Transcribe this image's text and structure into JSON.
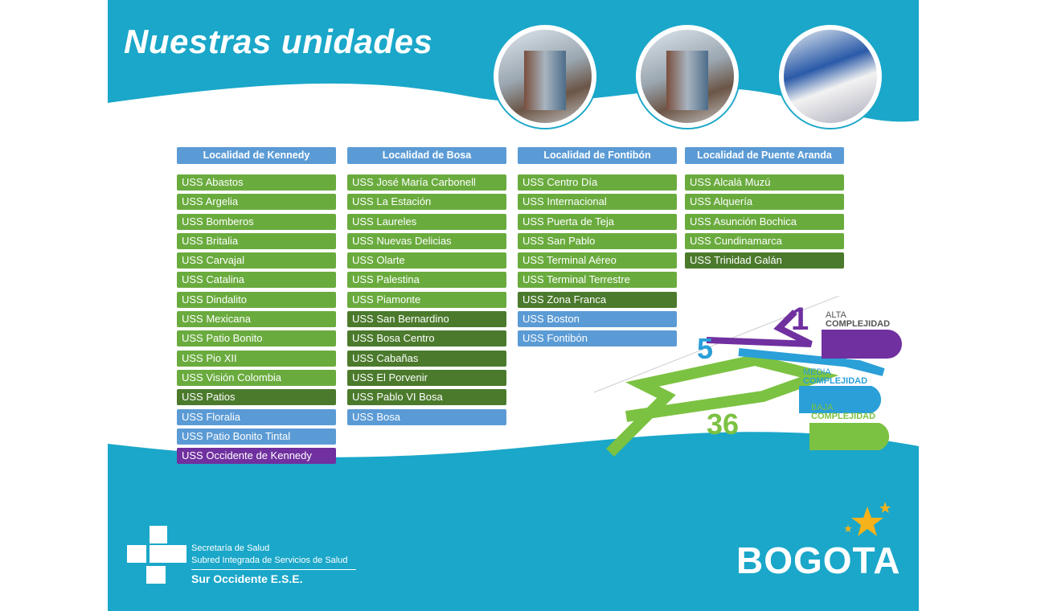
{
  "title": "Nuestras unidades",
  "columns": [
    {
      "header": "Localidad de Kennedy",
      "items": [
        {
          "label": "USS Abastos",
          "tone": "green"
        },
        {
          "label": "USS Argelia",
          "tone": "green"
        },
        {
          "label": "USS Bomberos",
          "tone": "green"
        },
        {
          "label": "USS Britalia",
          "tone": "green"
        },
        {
          "label": "USS Carvajal",
          "tone": "green"
        },
        {
          "label": "USS Catalina",
          "tone": "green"
        },
        {
          "label": "USS Dindalito",
          "tone": "green"
        },
        {
          "label": "USS Mexicana",
          "tone": "green"
        },
        {
          "label": "USS Patio Bonito",
          "tone": "green"
        },
        {
          "label": "USS Pio XII",
          "tone": "green"
        },
        {
          "label": "USS Visión Colombia",
          "tone": "green"
        },
        {
          "label": "USS  Patios",
          "tone": "dark-green"
        },
        {
          "label": "USS  Floralia",
          "tone": "blue"
        },
        {
          "label": "USS Patio Bonito Tintal",
          "tone": "blue"
        },
        {
          "label": "USS Occidente de Kennedy",
          "tone": "purple"
        }
      ]
    },
    {
      "header": "Localidad de Bosa",
      "items": [
        {
          "label": "USS José María Carbonell",
          "tone": "green"
        },
        {
          "label": "USS La Estación",
          "tone": "green"
        },
        {
          "label": "USS Laureles",
          "tone": "green"
        },
        {
          "label": "USS Nuevas Delicias",
          "tone": "green"
        },
        {
          "label": "USS Olarte",
          "tone": "green"
        },
        {
          "label": "USS Palestina",
          "tone": "green"
        },
        {
          "label": "USS Piamonte",
          "tone": "green"
        },
        {
          "label": "USS San Bernardino",
          "tone": "dark-green"
        },
        {
          "label": "USS Bosa Centro",
          "tone": "dark-green"
        },
        {
          "label": "USS  Cabañas",
          "tone": "dark-green"
        },
        {
          "label": "USS  El Porvenir",
          "tone": "dark-green"
        },
        {
          "label": "USS Pablo VI Bosa",
          "tone": "dark-green"
        },
        {
          "label": "USS Bosa",
          "tone": "blue"
        }
      ]
    },
    {
      "header": "Localidad de Fontibón",
      "items": [
        {
          "label": "USS Centro Día",
          "tone": "green"
        },
        {
          "label": "USS Internacional",
          "tone": "green"
        },
        {
          "label": "USS Puerta de Teja",
          "tone": "green"
        },
        {
          "label": "USS San Pablo",
          "tone": "green"
        },
        {
          "label": "USS Terminal Aéreo",
          "tone": "green"
        },
        {
          "label": "USS Terminal Terrestre",
          "tone": "green"
        },
        {
          "label": "USS Zona Franca",
          "tone": "dark-green"
        },
        {
          "label": "USS Boston",
          "tone": "blue"
        },
        {
          "label": "USS Fontibón",
          "tone": "blue"
        }
      ]
    },
    {
      "header": "Localidad de Puente Aranda",
      "items": [
        {
          "label": "USS Alcalá Muzú",
          "tone": "green"
        },
        {
          "label": "USS Alquería",
          "tone": "green"
        },
        {
          "label": "USS Asunción Bochica",
          "tone": "green"
        },
        {
          "label": "USS Cundinamarca",
          "tone": "green"
        },
        {
          "label": "USS Trinidad Galán",
          "tone": "dark-green"
        }
      ]
    }
  ],
  "complexity": [
    {
      "count": "1",
      "line1": "ALTA",
      "line2": "COMPLEJIDAD",
      "color": "#7030a0"
    },
    {
      "count": "5",
      "line1": "MEDIA",
      "line2": "COMPLEJIDAD",
      "color": "#2a9fd8"
    },
    {
      "count": "36",
      "line1": "BAJA",
      "line2": "COMPLEJIDAD",
      "color": "#7cc242"
    }
  ],
  "logo": {
    "line1": "Secretaría de Salud",
    "line2": "Subred Integrada de Servicios de Salud",
    "line3": "Sur Occidente E.S.E."
  },
  "brand": "BOGOTA",
  "colors": {
    "teal": "#1aa7c9",
    "green": "#6aab3e",
    "dark_green": "#4b7a2c",
    "blue": "#5b9bd5",
    "purple": "#7030a0"
  }
}
